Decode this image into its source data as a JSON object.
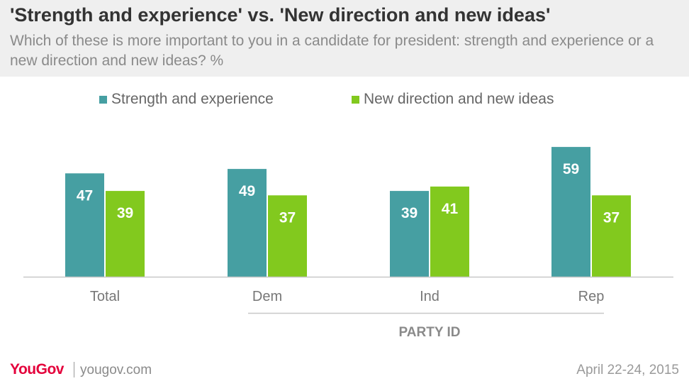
{
  "chart_data": {
    "type": "bar",
    "title": "'Strength and experience' vs. 'New direction and new ideas'",
    "subtitle": "Which of these is more important to you in a candidate for president: strength and experience or a new direction and new ideas? %",
    "categories": [
      "Total",
      "Dem",
      "Ind",
      "Rep"
    ],
    "group_label": "PARTY ID",
    "series": [
      {
        "name": "Strength and experience",
        "color": "#469fa2",
        "values": [
          47,
          49,
          39,
          59
        ]
      },
      {
        "name": "New direction and new ideas",
        "color": "#82c91e",
        "values": [
          39,
          37,
          41,
          37
        ]
      }
    ],
    "ylim": [
      0,
      65
    ],
    "legend_position": "top",
    "grid": false
  },
  "footer": {
    "logo": "YouGov",
    "site": "yougov.com",
    "date": "April  22-24, 2015"
  }
}
